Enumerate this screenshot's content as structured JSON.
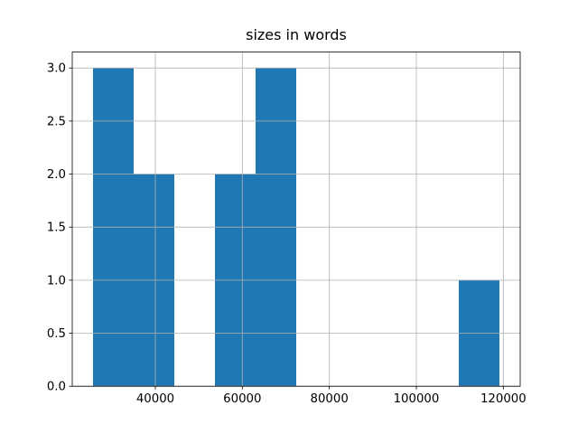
{
  "chart_data": {
    "type": "histogram",
    "title": "sizes in words",
    "bins": [
      25674,
      35017,
      44360,
      53703,
      63046,
      72389,
      81732,
      91075,
      100418,
      109761,
      119104
    ],
    "values": [
      3,
      2,
      0,
      2,
      3,
      0,
      0,
      0,
      0,
      1
    ],
    "color": "#1f77b4",
    "xlim": [
      20899,
      123878
    ],
    "xticks": [
      40000,
      60000,
      80000,
      100000,
      120000
    ],
    "ylim": [
      0,
      3.15
    ],
    "yticks": [
      {
        "value": 0,
        "label": "0.0"
      },
      0.5,
      {
        "value": 1,
        "label": "1.0"
      },
      1.5,
      {
        "value": 2,
        "label": "2.0"
      },
      2.5,
      {
        "value": 3,
        "label": "3.0"
      }
    ],
    "grid": true
  }
}
